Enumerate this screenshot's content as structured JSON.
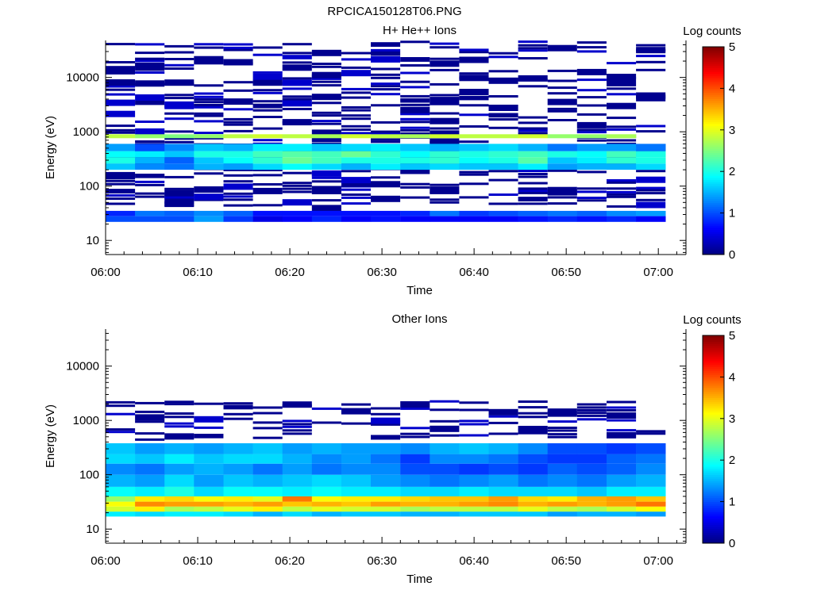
{
  "figure_title": "RPCICA150128T06.PNG",
  "colorbar": {
    "title": "Log counts",
    "ticks": [
      "0",
      "1",
      "2",
      "3",
      "4",
      "5"
    ],
    "range": [
      0,
      5
    ],
    "colormap": "jet"
  },
  "chart_data": [
    {
      "type": "heatmap",
      "title": "H+ He++ Ions",
      "xlabel": "Time",
      "ylabel": "Energy (eV)",
      "x_ticks": [
        "06:00",
        "06:10",
        "06:20",
        "06:30",
        "06:40",
        "06:50",
        "07:00"
      ],
      "x_range": [
        "06:00",
        "07:03"
      ],
      "y_scale": "log",
      "y_range": [
        5.5,
        48000
      ],
      "y_ticks": [
        "10",
        "100",
        "1000",
        "10000"
      ],
      "columns": [
        "06:00",
        "06:03",
        "06:06",
        "06:10",
        "06:13",
        "06:16",
        "06:19",
        "06:22",
        "06:26",
        "06:29",
        "06:32",
        "06:35",
        "06:38",
        "06:42",
        "06:45",
        "06:48",
        "06:51",
        "06:54",
        "06:57"
      ],
      "bands": [
        {
          "e_min": 22,
          "e_max": 28,
          "values": [
            1.0,
            1.0,
            1.0,
            1.4,
            0.9,
            0.5,
            0.6,
            0.8,
            0.6,
            0.7,
            0.6,
            0.6,
            0.6,
            0.6,
            0.7,
            0.8,
            0.7,
            0.8,
            0.6
          ]
        },
        {
          "e_min": 28,
          "e_max": 35,
          "values": [
            0.8,
            1.2,
            1.1,
            1.3,
            1.1,
            0.7,
            0.7,
            0.7,
            0.7,
            0.7,
            0.8,
            1.2,
            0.9,
            1.0,
            1.1,
            1.2,
            1.1,
            1.3,
            1.4
          ]
        },
        {
          "e_min": 200,
          "e_max": 260,
          "values": [
            1.6,
            1.3,
            1.2,
            1.5,
            1.4,
            1.7,
            1.9,
            1.7,
            1.5,
            1.8,
            1.6,
            1.7,
            1.6,
            1.6,
            1.8,
            1.4,
            1.5,
            1.5,
            1.7
          ]
        },
        {
          "e_min": 260,
          "e_max": 340,
          "values": [
            2.0,
            1.5,
            1.1,
            1.6,
            1.9,
            2.1,
            2.4,
            2.2,
            2.0,
            2.0,
            2.0,
            2.1,
            1.9,
            2.0,
            2.3,
            1.6,
            1.8,
            2.1,
            2.0
          ]
        },
        {
          "e_min": 340,
          "e_max": 440,
          "values": [
            1.9,
            1.8,
            1.6,
            2.0,
            2.0,
            2.2,
            2.3,
            2.2,
            2.4,
            2.1,
            1.9,
            2.1,
            2.0,
            2.1,
            2.2,
            2.0,
            1.9,
            2.2,
            2.0
          ]
        },
        {
          "e_min": 440,
          "e_max": 600,
          "values": [
            1.4,
            1.0,
            1.3,
            1.6,
            1.5,
            1.8,
            1.8,
            1.6,
            1.7,
            1.8,
            1.6,
            1.5,
            1.6,
            1.7,
            1.5,
            1.2,
            1.4,
            1.4,
            1.2
          ]
        },
        {
          "e_min": 760,
          "e_max": 900,
          "values": [
            2.8,
            2.6,
            2.5,
            2.6,
            2.8,
            2.9,
            2.8,
            2.7,
            2.9,
            2.8,
            2.7,
            2.9,
            2.8,
            2.8,
            2.9,
            2.6,
            2.6,
            2.7,
            0
          ]
        }
      ]
    },
    {
      "type": "heatmap",
      "title": "Other Ions",
      "xlabel": "Time",
      "ylabel": "Energy (eV)",
      "x_ticks": [
        "06:00",
        "06:10",
        "06:20",
        "06:30",
        "06:40",
        "06:50",
        "07:00"
      ],
      "x_range": [
        "06:00",
        "07:03"
      ],
      "y_scale": "log",
      "y_range": [
        5.5,
        48000
      ],
      "y_ticks": [
        "10",
        "100",
        "1000",
        "10000"
      ],
      "columns": [
        "06:00",
        "06:03",
        "06:06",
        "06:10",
        "06:13",
        "06:16",
        "06:19",
        "06:22",
        "06:26",
        "06:29",
        "06:32",
        "06:35",
        "06:38",
        "06:42",
        "06:45",
        "06:48",
        "06:51",
        "06:54",
        "06:57"
      ],
      "bands": [
        {
          "e_min": 17,
          "e_max": 21,
          "values": [
            1.8,
            1.7,
            1.8,
            1.8,
            1.7,
            1.5,
            1.7,
            1.5,
            1.6,
            1.6,
            1.5,
            1.5,
            1.6,
            1.6,
            1.6,
            1.4,
            1.5,
            1.5,
            1.4
          ]
        },
        {
          "e_min": 21,
          "e_max": 26,
          "values": [
            2.9,
            3.2,
            2.7,
            2.8,
            3.0,
            3.2,
            2.8,
            3.0,
            2.9,
            2.9,
            2.7,
            2.8,
            2.8,
            2.8,
            3.0,
            2.8,
            2.7,
            2.9,
            3.1
          ]
        },
        {
          "e_min": 26,
          "e_max": 32,
          "values": [
            3.1,
            3.7,
            3.6,
            3.6,
            3.5,
            3.6,
            3.4,
            3.5,
            3.4,
            3.6,
            3.5,
            3.5,
            3.6,
            3.7,
            3.5,
            3.6,
            3.5,
            3.6,
            3.8
          ]
        },
        {
          "e_min": 32,
          "e_max": 40,
          "values": [
            2.6,
            3.2,
            3.3,
            3.1,
            3.2,
            3.0,
            3.8,
            3.1,
            3.2,
            3.2,
            3.3,
            3.4,
            3.4,
            3.6,
            3.3,
            3.2,
            3.5,
            3.6,
            3.4
          ]
        },
        {
          "e_min": 40,
          "e_max": 60,
          "values": [
            1.9,
            1.8,
            2.0,
            1.7,
            1.9,
            1.9,
            1.8,
            1.9,
            1.8,
            1.8,
            1.7,
            1.7,
            1.8,
            1.7,
            1.7,
            1.7,
            1.6,
            1.8,
            1.8
          ]
        },
        {
          "e_min": 60,
          "e_max": 100,
          "values": [
            1.5,
            1.4,
            1.7,
            1.4,
            1.6,
            1.5,
            1.6,
            1.7,
            1.6,
            1.4,
            1.3,
            1.2,
            1.3,
            1.4,
            1.2,
            1.3,
            1.2,
            1.4,
            1.5
          ]
        },
        {
          "e_min": 100,
          "e_max": 160,
          "values": [
            1.3,
            1.2,
            1.4,
            1.5,
            1.4,
            1.2,
            1.4,
            1.2,
            1.3,
            1.3,
            1.0,
            1.0,
            0.9,
            1.0,
            0.9,
            1.1,
            1.0,
            1.1,
            1.3
          ]
        },
        {
          "e_min": 160,
          "e_max": 240,
          "values": [
            1.7,
            1.6,
            1.8,
            1.6,
            1.7,
            1.7,
            1.5,
            1.3,
            1.4,
            1.2,
            0.9,
            1.3,
            1.3,
            1.2,
            1.0,
            0.9,
            0.9,
            1.1,
            1.2
          ]
        },
        {
          "e_min": 240,
          "e_max": 380,
          "values": [
            1.6,
            1.4,
            1.5,
            1.4,
            1.5,
            1.6,
            1.4,
            1.5,
            1.4,
            1.4,
            1.3,
            1.5,
            1.6,
            1.5,
            1.3,
            1.0,
            1.0,
            0.9,
            1.0
          ]
        }
      ]
    }
  ]
}
